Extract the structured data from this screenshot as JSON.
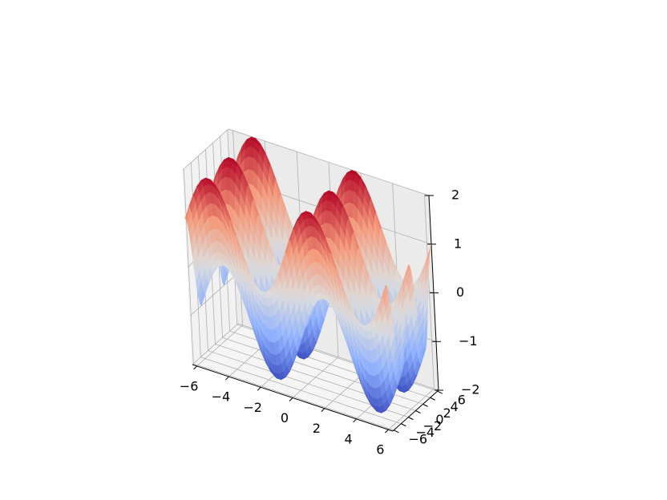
{
  "chart_data": {
    "type": "surface3d",
    "title": "",
    "xlabel": "",
    "ylabel": "",
    "zlabel": "",
    "function": "z = sin(x) + cos(y)",
    "colormap": "coolwarm",
    "x_range": [
      -6.28,
      6.28
    ],
    "y_range": [
      -6.28,
      6.28
    ],
    "zlim": [
      -2,
      2
    ],
    "x_ticks": [
      -6,
      -4,
      -2,
      0,
      2,
      4,
      6
    ],
    "y_ticks": [
      -6,
      -4,
      -2,
      0,
      2,
      4,
      6
    ],
    "z_ticks": [
      -2,
      -1,
      0,
      1,
      2
    ],
    "x_tick_labels": [
      "−6",
      "−4",
      "−2",
      "0",
      "2",
      "4",
      "6"
    ],
    "y_tick_labels": [
      "−6",
      "−4",
      "−2",
      "0",
      "2",
      "4",
      "6"
    ],
    "z_tick_labels": [
      "−2",
      "−1",
      "0",
      "1",
      "2"
    ],
    "grid": true,
    "colors": {
      "low": "#3b4cc0",
      "mid": "#dddddd",
      "high": "#b40426",
      "pane_left": "#f2f2f2",
      "pane_back": "#ebebeb",
      "floor": "#f5f5f5"
    }
  }
}
